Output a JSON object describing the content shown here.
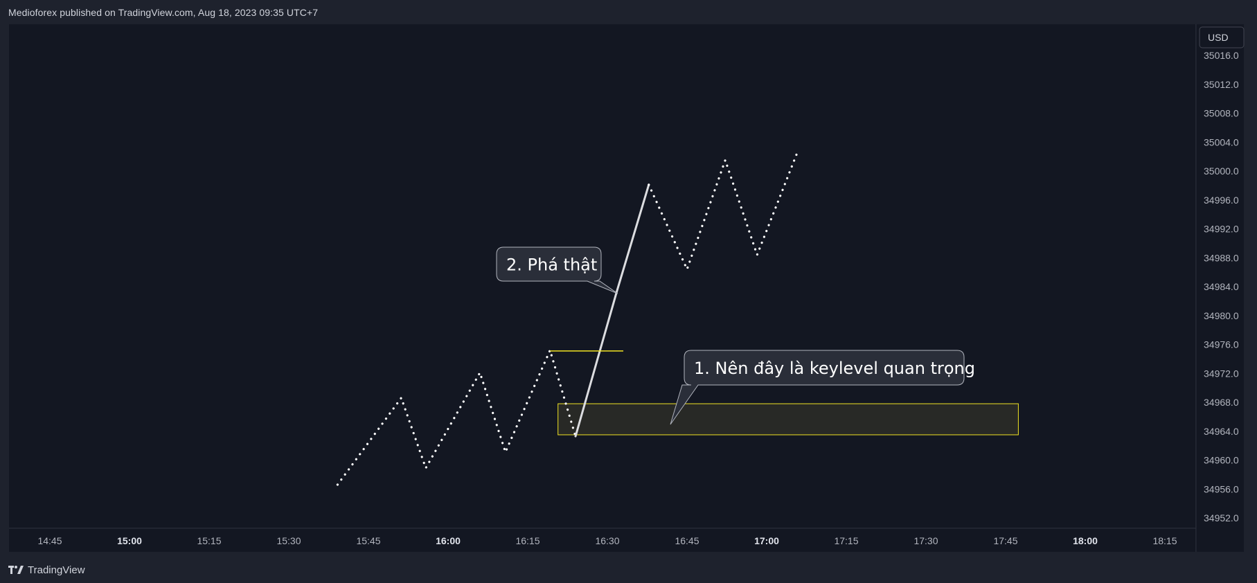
{
  "header": {
    "published_line": "Medioforex published on TradingView.com, Aug 18, 2023 09:35 UTC+7"
  },
  "footer": {
    "brand_label": "TradingView"
  },
  "currency_label": "USD",
  "colors": {
    "background": "#131722",
    "frame": "#1e222d",
    "price_line": "#ffffff",
    "keylevel": "#f2e423",
    "zone_fill": "#2b2b27",
    "callout_bg": "#2a2e39",
    "callout_border": "#b2b5be",
    "grid_text": "#b2b5be"
  },
  "annotations": {
    "callout_1": "1. Nên đây là keylevel quan trọng",
    "callout_2": "2. Phá thật"
  },
  "chart_data": {
    "type": "line",
    "title": "",
    "xlabel": "",
    "ylabel": "USD",
    "ylim": [
      34951,
      35018
    ],
    "y_ticks": [
      "35016.0",
      "35012.0",
      "35008.0",
      "35004.0",
      "35000.0",
      "34996.0",
      "34992.0",
      "34988.0",
      "34984.0",
      "34980.0",
      "34976.0",
      "34972.0",
      "34968.0",
      "34964.0",
      "34960.0",
      "34956.0",
      "34952.0"
    ],
    "x_ticks": [
      {
        "label": "14:45",
        "time": 14.75,
        "bold": false
      },
      {
        "label": "15:00",
        "time": 15.0,
        "bold": true
      },
      {
        "label": "15:15",
        "time": 15.25,
        "bold": false
      },
      {
        "label": "15:30",
        "time": 15.5,
        "bold": false
      },
      {
        "label": "15:45",
        "time": 15.75,
        "bold": false
      },
      {
        "label": "16:00",
        "time": 16.0,
        "bold": true
      },
      {
        "label": "16:15",
        "time": 16.25,
        "bold": false
      },
      {
        "label": "16:30",
        "time": 16.5,
        "bold": false
      },
      {
        "label": "16:45",
        "time": 16.75,
        "bold": false
      },
      {
        "label": "17:00",
        "time": 17.0,
        "bold": true
      },
      {
        "label": "17:15",
        "time": 17.25,
        "bold": false
      },
      {
        "label": "17:30",
        "time": 17.5,
        "bold": false
      },
      {
        "label": "17:45",
        "time": 17.75,
        "bold": false
      },
      {
        "label": "18:00",
        "time": 18.0,
        "bold": true
      },
      {
        "label": "18:15",
        "time": 18.25,
        "bold": false
      }
    ],
    "series": [
      {
        "name": "projected-path-dotted",
        "style": "dotted",
        "points": [
          [
            15.653,
            34956.6
          ],
          [
            15.853,
            34968.6
          ],
          [
            15.93,
            34958.9
          ],
          [
            16.1,
            34972.1
          ],
          [
            16.18,
            34961.1
          ],
          [
            16.32,
            34975.2
          ],
          [
            16.4,
            34963.3
          ]
        ]
      },
      {
        "name": "breakout-leg-solid",
        "style": "solid",
        "points": [
          [
            16.4,
            34963.3
          ],
          [
            16.53,
            34983.4
          ],
          [
            16.63,
            34998.1
          ]
        ]
      },
      {
        "name": "continuation-dotted",
        "style": "dotted",
        "points": [
          [
            16.63,
            34998.1
          ],
          [
            16.75,
            34986.4
          ],
          [
            16.87,
            35001.5
          ],
          [
            16.97,
            34988.4
          ],
          [
            17.1,
            35003.0
          ]
        ]
      }
    ],
    "keylevel_line": {
      "price": 34975.1,
      "x_start": 16.32,
      "x_end": 16.55
    },
    "keylevel_zone": {
      "price_top": 34967.8,
      "price_bottom": 34963.5,
      "x_start": 16.345,
      "x_end": 17.79
    }
  }
}
